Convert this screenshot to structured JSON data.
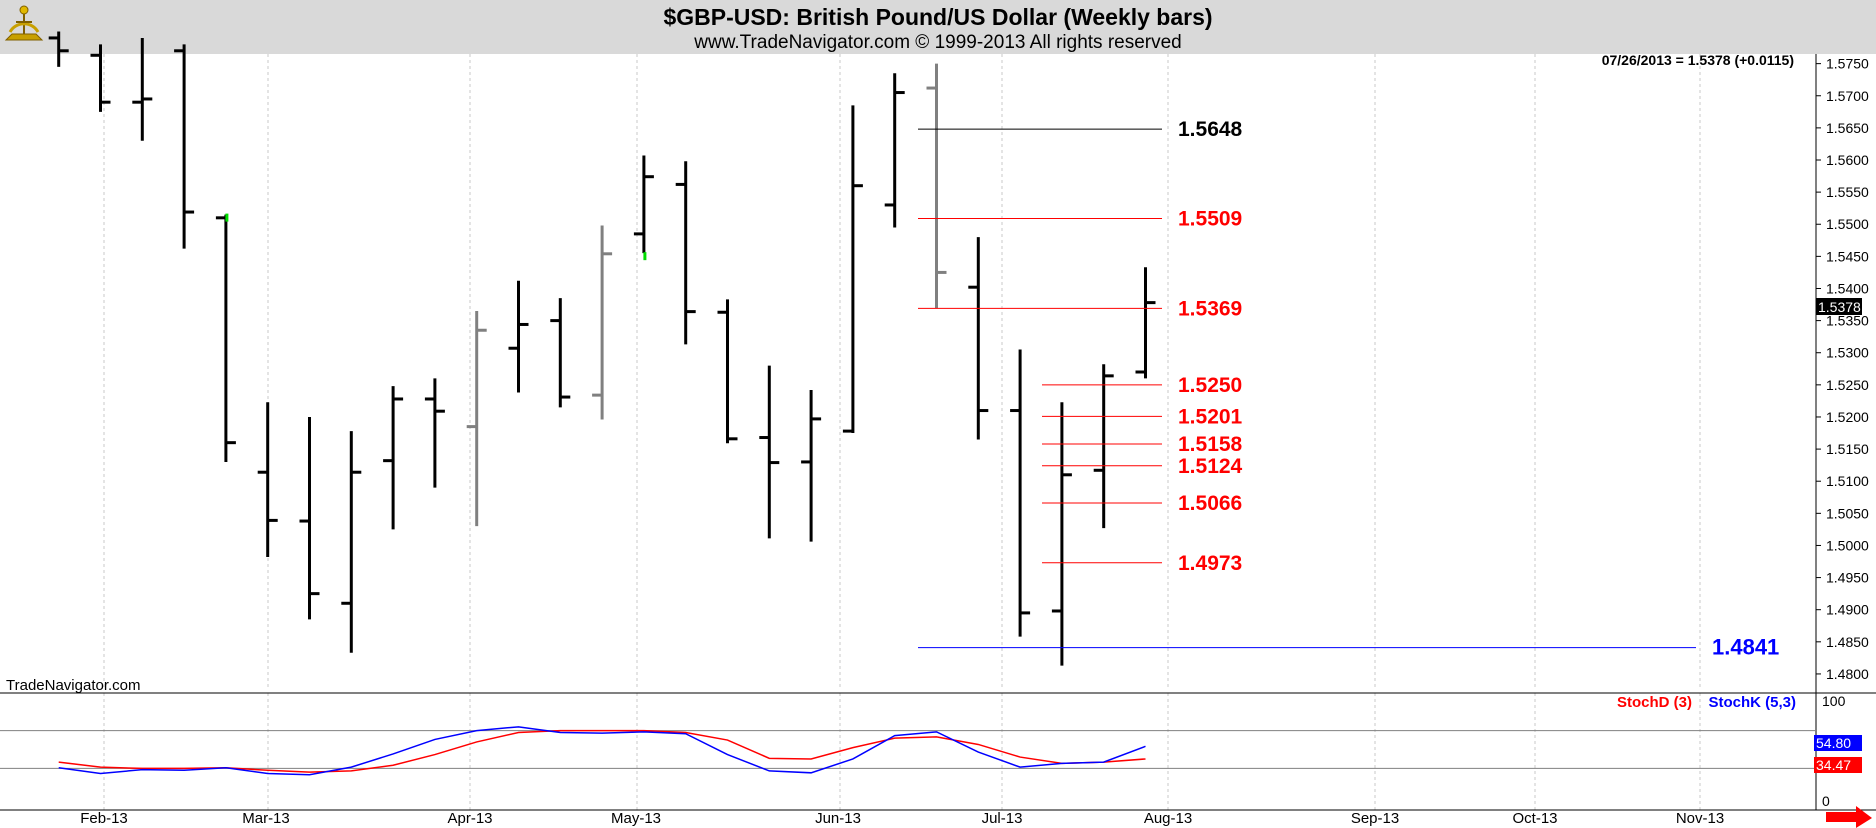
{
  "header": {
    "title": "$GBP-USD:  British Pound/US Dollar  (Weekly bars)",
    "subtitle": "www.TradeNavigator.com © 1999-2013 All rights reserved"
  },
  "watermark": "TradeNavigator.com",
  "last_quote": "07/26/2013 = 1.5378 (+0.0115)",
  "last_price_tag": "1.5378",
  "colors": {
    "black": "#000000",
    "gray_bar": "#808080",
    "green_tick": "#00dd00",
    "red": "#ff0000",
    "blue": "#0000ff",
    "header_bg": "#d9d9d9",
    "grid": "#c8c8c8"
  },
  "chart_data": [
    {
      "type": "ohlc",
      "title": "$GBP-USD:  British Pound/US Dollar  (Weekly bars)",
      "y_ticks": [
        "1.4800",
        "1.4850",
        "1.4900",
        "1.4950",
        "1.5000",
        "1.5050",
        "1.5100",
        "1.5150",
        "1.5200",
        "1.5250",
        "1.5300",
        "1.5350",
        "1.5400",
        "1.5450",
        "1.5500",
        "1.5550",
        "1.5600",
        "1.5650",
        "1.5700",
        "1.5750"
      ],
      "ylim": [
        1.4775,
        1.5765
      ],
      "x_labels": [
        "Feb-13",
        "Mar-13",
        "Apr-13",
        "May-13",
        "Jun-13",
        "Jul-13",
        "Aug-13",
        "Sep-13",
        "Oct-13",
        "Nov-13"
      ],
      "grid": true,
      "bars": [
        {
          "week": "2013-01-11",
          "open": 1.579,
          "high": 1.58,
          "low": 1.5745,
          "close": 1.577,
          "color": "black"
        },
        {
          "week": "2013-01-18",
          "open": 1.5763,
          "high": 1.578,
          "low": 1.5675,
          "close": 1.569,
          "color": "black"
        },
        {
          "week": "2013-01-25",
          "open": 1.569,
          "high": 1.579,
          "low": 1.563,
          "close": 1.5695,
          "color": "black"
        },
        {
          "week": "2013-02-01",
          "open": 1.577,
          "high": 1.578,
          "low": 1.5462,
          "close": 1.5519,
          "color": "black"
        },
        {
          "week": "2013-02-08",
          "open": 1.551,
          "high": 1.5515,
          "low": 1.513,
          "close": 1.516,
          "color": "black"
        },
        {
          "week": "2013-02-15",
          "open": 1.5114,
          "high": 1.5223,
          "low": 1.4982,
          "close": 1.5039,
          "color": "black"
        },
        {
          "week": "2013-02-22",
          "open": 1.5038,
          "high": 1.52,
          "low": 1.4885,
          "close": 1.4925,
          "color": "black"
        },
        {
          "week": "2013-03-01",
          "open": 1.491,
          "high": 1.5178,
          "low": 1.4833,
          "close": 1.5114,
          "color": "black"
        },
        {
          "week": "2013-03-08",
          "open": 1.5132,
          "high": 1.5248,
          "low": 1.5025,
          "close": 1.5228,
          "color": "black"
        },
        {
          "week": "2013-03-15",
          "open": 1.5228,
          "high": 1.526,
          "low": 1.509,
          "close": 1.5209,
          "color": "black"
        },
        {
          "week": "2013-03-22",
          "open": 1.5185,
          "high": 1.5365,
          "low": 1.503,
          "close": 1.5335,
          "color": "gray"
        },
        {
          "week": "2013-03-29",
          "open": 1.5307,
          "high": 1.5412,
          "low": 1.5238,
          "close": 1.5344,
          "color": "black"
        },
        {
          "week": "2013-04-05",
          "open": 1.535,
          "high": 1.5385,
          "low": 1.5215,
          "close": 1.5231,
          "color": "black"
        },
        {
          "week": "2013-04-12",
          "open": 1.5234,
          "high": 1.5498,
          "low": 1.5196,
          "close": 1.5454,
          "color": "gray"
        },
        {
          "week": "2013-04-19",
          "open": 1.5485,
          "high": 1.5607,
          "low": 1.5455,
          "close": 1.5574,
          "color": "black"
        },
        {
          "week": "2013-04-26",
          "open": 1.5562,
          "high": 1.5598,
          "low": 1.5313,
          "close": 1.5364,
          "color": "black"
        },
        {
          "week": "2013-05-03",
          "open": 1.5363,
          "high": 1.5383,
          "low": 1.5159,
          "close": 1.5166,
          "color": "black"
        },
        {
          "week": "2013-05-10",
          "open": 1.5168,
          "high": 1.528,
          "low": 1.5011,
          "close": 1.5129,
          "color": "black"
        },
        {
          "week": "2013-05-17",
          "open": 1.513,
          "high": 1.5242,
          "low": 1.5006,
          "close": 1.5197,
          "color": "black"
        },
        {
          "week": "2013-05-24",
          "open": 1.5178,
          "high": 1.5685,
          "low": 1.5175,
          "close": 1.556,
          "color": "black"
        },
        {
          "week": "2013-05-31",
          "open": 1.553,
          "high": 1.5735,
          "low": 1.5495,
          "close": 1.5705,
          "color": "black"
        },
        {
          "week": "2013-06-07",
          "open": 1.5712,
          "high": 1.575,
          "low": 1.5369,
          "close": 1.5425,
          "color": "gray"
        },
        {
          "week": "2013-06-14",
          "open": 1.5402,
          "high": 1.548,
          "low": 1.5165,
          "close": 1.521,
          "color": "black"
        },
        {
          "week": "2013-06-21",
          "open": 1.521,
          "high": 1.5305,
          "low": 1.4858,
          "close": 1.4895,
          "color": "black"
        },
        {
          "week": "2013-06-28",
          "open": 1.4898,
          "high": 1.5223,
          "low": 1.4813,
          "close": 1.511,
          "color": "black"
        },
        {
          "week": "2013-07-05",
          "open": 1.5117,
          "high": 1.5282,
          "low": 1.5027,
          "close": 1.5264,
          "color": "black"
        },
        {
          "week": "2013-07-12",
          "open": 1.527,
          "high": 1.5433,
          "low": 1.526,
          "close": 1.5378,
          "color": "black"
        }
      ],
      "levels": [
        {
          "label": "1.5648",
          "value": 1.5648,
          "color": "black"
        },
        {
          "label": "1.5509",
          "value": 1.5509,
          "color": "red"
        },
        {
          "label": "1.5369",
          "value": 1.5369,
          "color": "red"
        },
        {
          "label": "1.5250",
          "value": 1.525,
          "color": "red"
        },
        {
          "label": "1.5201",
          "value": 1.5201,
          "color": "red"
        },
        {
          "label": "1.5158",
          "value": 1.5158,
          "color": "red"
        },
        {
          "label": "1.5124",
          "value": 1.5124,
          "color": "red"
        },
        {
          "label": "1.5066",
          "value": 1.5066,
          "color": "red"
        },
        {
          "label": "1.4973",
          "value": 1.4973,
          "color": "red"
        },
        {
          "label": "1.4841",
          "value": 1.4841,
          "color": "blue"
        }
      ]
    },
    {
      "type": "line",
      "title": "",
      "legend": [
        "StochD (3)",
        "StochK (5,3)"
      ],
      "y_ticks": [
        "100",
        "0"
      ],
      "ylim": [
        0,
        100
      ],
      "reference_lines": [
        80,
        20
      ],
      "last_values": {
        "stoch_k": "54.80",
        "stoch_d": "34.47"
      },
      "series": [
        {
          "name": "StochD (3)",
          "color": "red",
          "values": [
            30,
            22,
            20,
            20,
            21,
            17,
            14,
            16,
            25,
            42,
            62,
            77,
            80,
            80,
            80,
            77,
            65,
            36,
            35,
            53,
            68,
            70,
            58,
            38,
            28,
            30,
            35
          ]
        },
        {
          "name": "StochK (5,3)",
          "color": "blue",
          "values": [
            21,
            12,
            18,
            17,
            21,
            12,
            10,
            22,
            43,
            66,
            80,
            86,
            77,
            76,
            78,
            75,
            42,
            16,
            13,
            35,
            72,
            78,
            46,
            22,
            28,
            30,
            55
          ]
        }
      ]
    }
  ]
}
